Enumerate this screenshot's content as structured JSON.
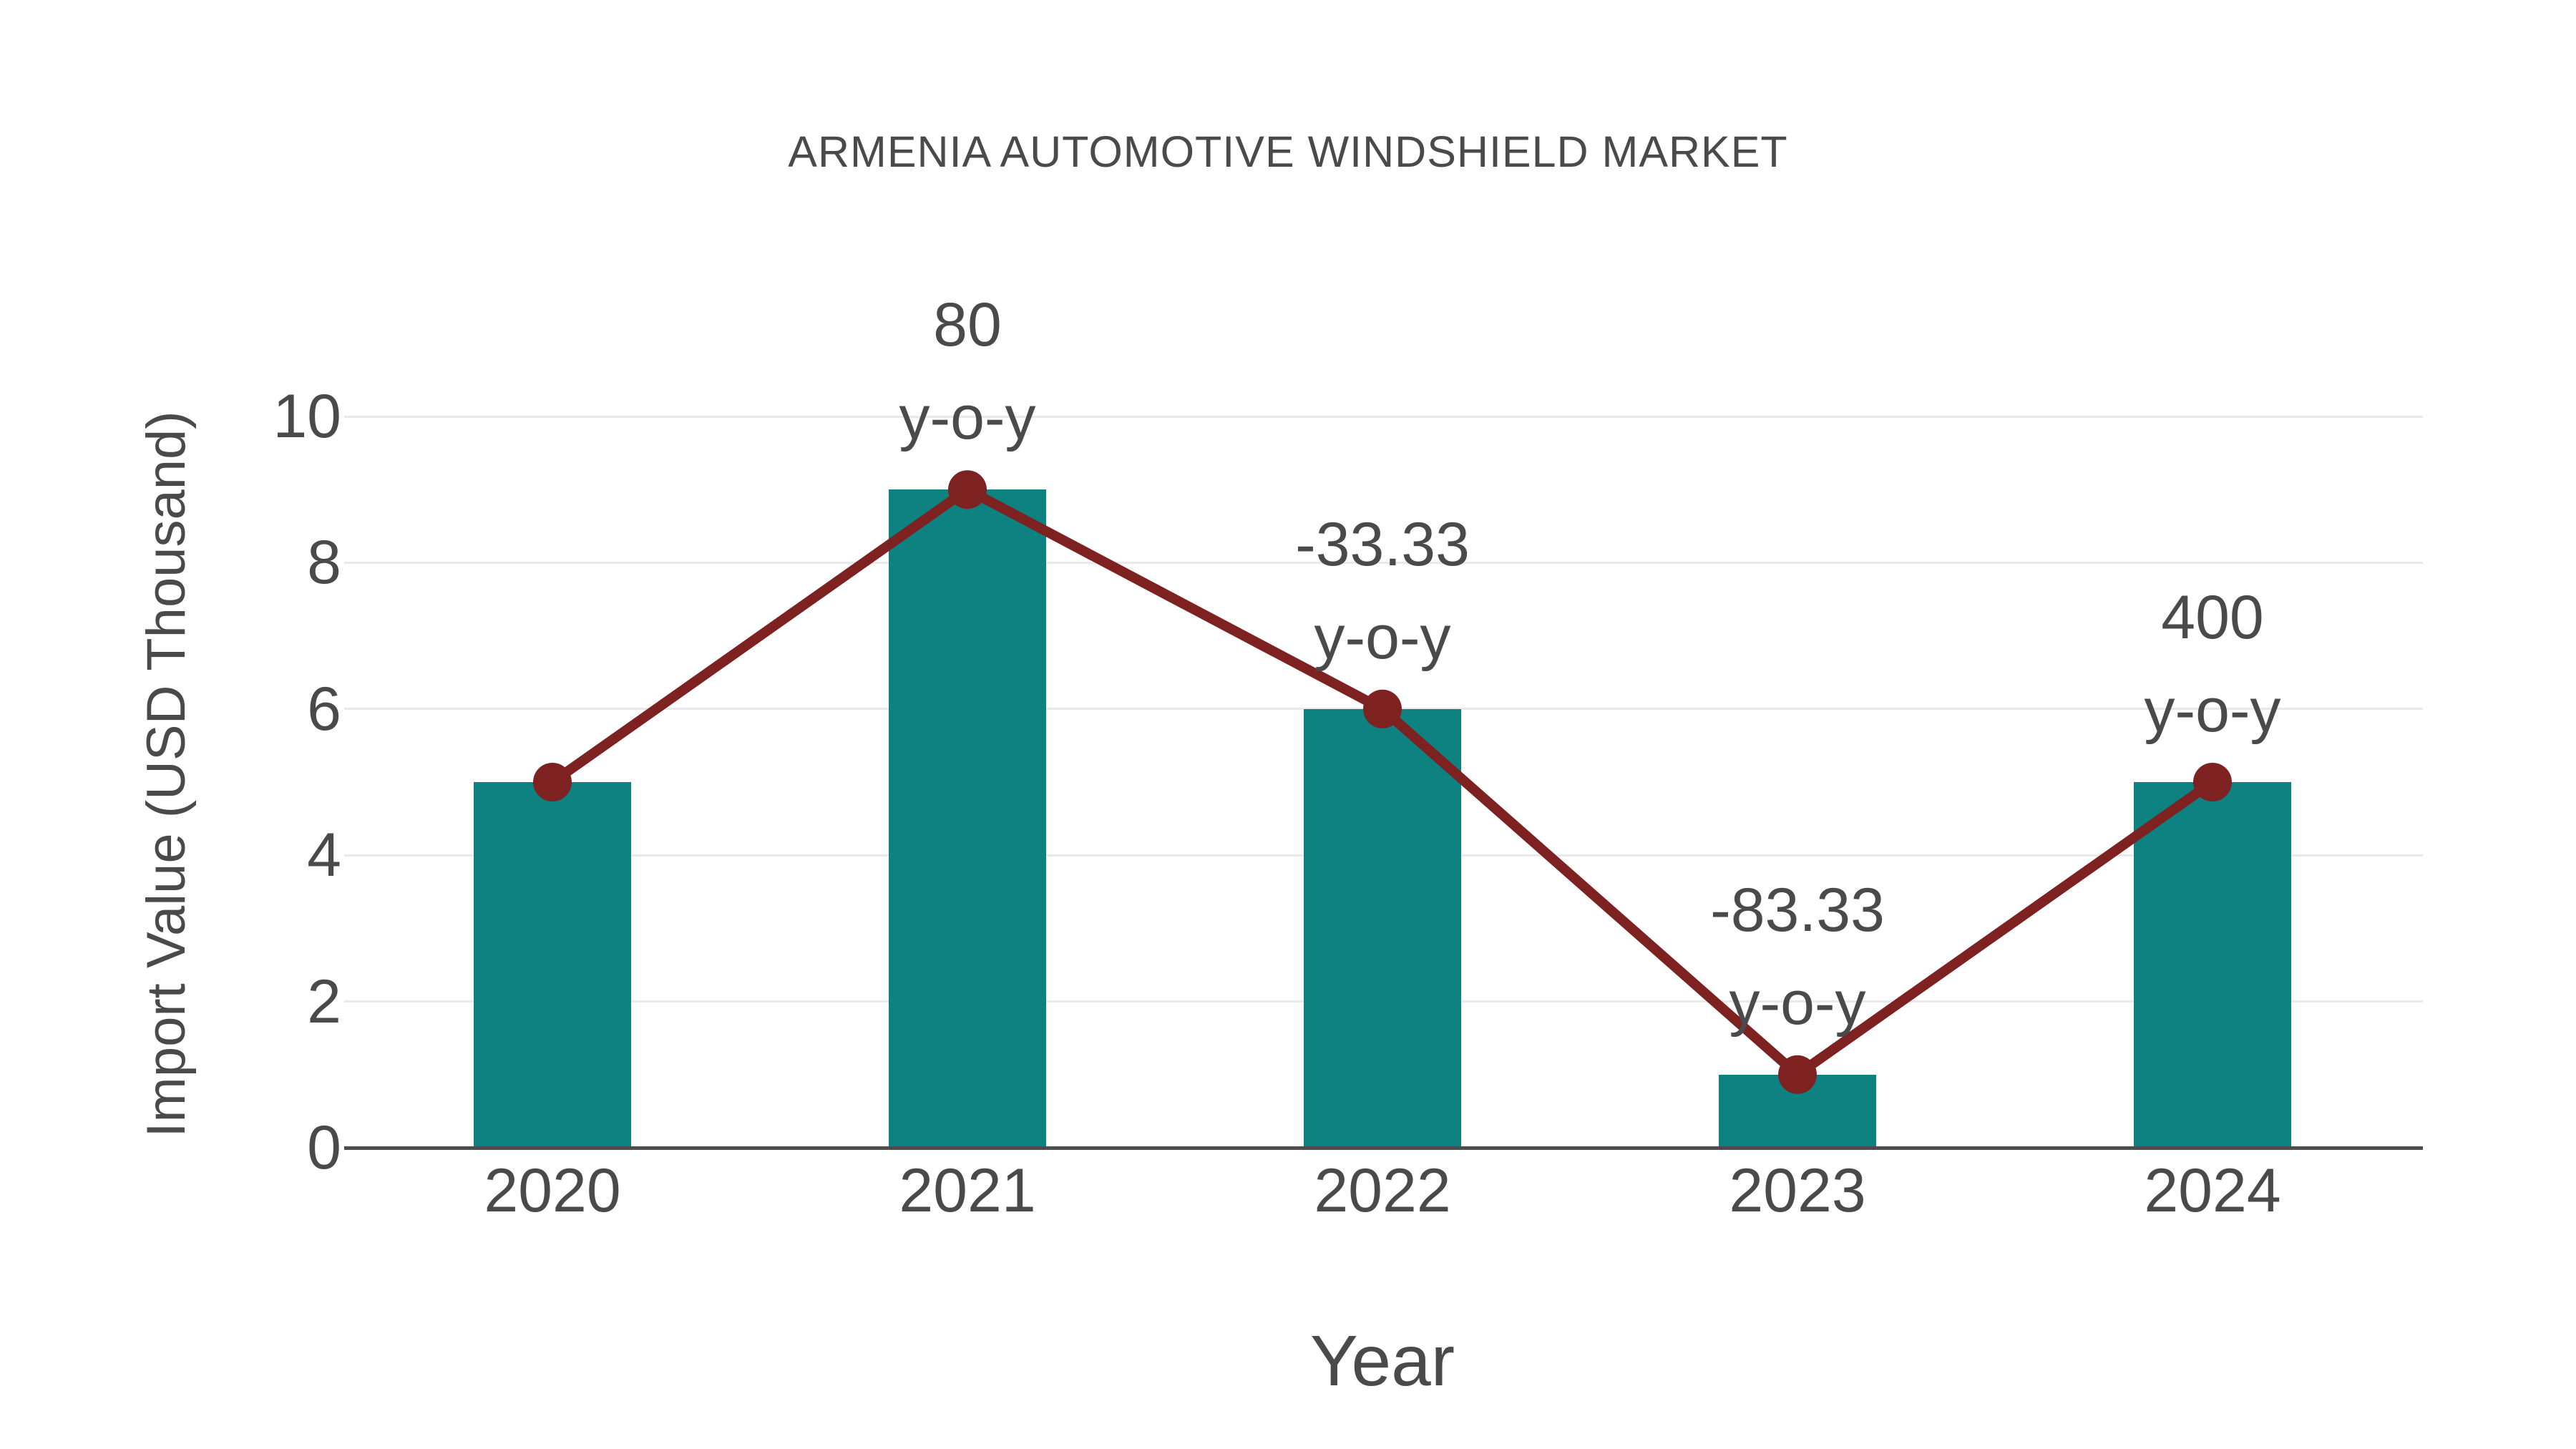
{
  "title": "ARMENIA AUTOMOTIVE WINDSHIELD MARKET",
  "chart_data": {
    "type": "bar",
    "title": "ARMENIA AUTOMOTIVE WINDSHIELD MARKET",
    "categories": [
      "2020",
      "2021",
      "2022",
      "2023",
      "2024"
    ],
    "series": [
      {
        "name": "import-value-bars",
        "type": "bar",
        "values": [
          5,
          9,
          6,
          1,
          5
        ]
      },
      {
        "name": "yoy-growth-line",
        "type": "line",
        "values": [
          5,
          9,
          6,
          1,
          5
        ],
        "yoy_percent": [
          null,
          80,
          -33.33,
          -83.33,
          400
        ]
      }
    ],
    "point_labels": [
      {
        "index": 1,
        "lines": [
          "80",
          "y-o-y"
        ]
      },
      {
        "index": 2,
        "lines": [
          "-33.33",
          "y-o-y"
        ]
      },
      {
        "index": 3,
        "lines": [
          "-83.33",
          "y-o-y"
        ]
      },
      {
        "index": 4,
        "lines": [
          "400",
          "y-o-y"
        ]
      }
    ],
    "xlabel": "Year",
    "ylabel": "Import Value (USD Thousand)",
    "yticks": [
      0,
      2,
      4,
      6,
      8,
      10
    ],
    "ylim": [
      0,
      10
    ],
    "grid": true,
    "legend_position": "none"
  },
  "colors": {
    "bar": "#0e8181",
    "line": "#7e2121",
    "marker": "#7e2121",
    "gridline": "#e9e9e9",
    "axis_line": "#4d4d4d",
    "text": "#4a4a4a",
    "background": "#ffffff"
  }
}
